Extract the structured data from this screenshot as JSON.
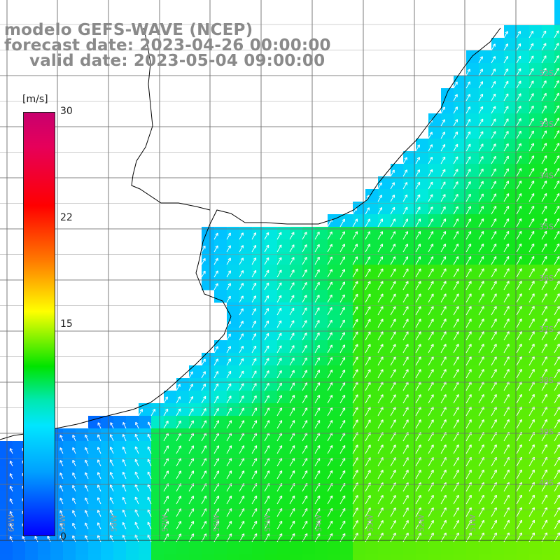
{
  "title": {
    "line1": "modelo GEFS-WAVE (NCEP)",
    "line2": "forecast date: 2023-04-26 00:00:00",
    "line3": "valid date: 2023-05-04 09:00:00"
  },
  "colorbar": {
    "unit": "[m/s]",
    "ticks": [
      "30",
      "22",
      "15",
      "0"
    ],
    "colors": [
      "#c8006e",
      "#ff0000",
      "#ff7a00",
      "#ffff00",
      "#00e400",
      "#00e6ff",
      "#00a0ff",
      "#0000ff"
    ]
  },
  "lat_labels": [
    "32S",
    "33S",
    "34S",
    "35S",
    "36S",
    "37S",
    "38S",
    "39S",
    "40S"
  ],
  "lon_labels": [
    "60W",
    "59W",
    "58W",
    "57W",
    "56W",
    "55W",
    "54W",
    "53W",
    "52W",
    "51W"
  ],
  "colors": {
    "land": "#ffffff",
    "grid": "#555555",
    "coast": "#000000",
    "arrow": "#ffffff"
  }
}
